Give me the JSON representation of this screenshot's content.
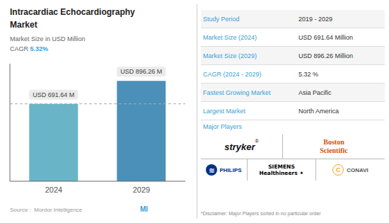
{
  "chart_data": {
    "type": "bar",
    "title": "Intracardiac Echocardiography\nMarket",
    "subtitle": "Market Size in USD Million",
    "categories": [
      "2024",
      "2029"
    ],
    "values": [
      691.64,
      896.26
    ],
    "value_labels": [
      "USD 691.64 M",
      "USD 896.26 M"
    ],
    "data_labels": true,
    "colors": [
      "#6ab4c8",
      "#4a90b8"
    ],
    "ylim": [
      0,
      1050
    ],
    "grid": false,
    "tick_labels": "x",
    "table": [
      [
        "Study Period",
        "2019 - 2029"
      ],
      [
        "Market Size (2024)",
        "USD 691.64 Million"
      ],
      [
        "Market Size (2029)",
        "USD 896.26 Million"
      ],
      [
        "CAGR (2024 - 2029)",
        "5.32 %"
      ],
      [
        "Fastest Growing Market",
        "Asia Pacific"
      ],
      [
        "Largest Market",
        "North America"
      ]
    ],
    "annotations": [
      "CAGR",
      "5.32%",
      "Source :  Mordor Intelligence",
      "MI",
      "Major Players",
      "stryker",
      "®",
      "Boston\nScientific",
      "PHILIPS",
      "≋",
      "SIEMENS\nHealthineers ✦",
      "CONAVI",
      "C",
      "*Disclaimer: Major Players sorted in no particular order"
    ]
  }
}
